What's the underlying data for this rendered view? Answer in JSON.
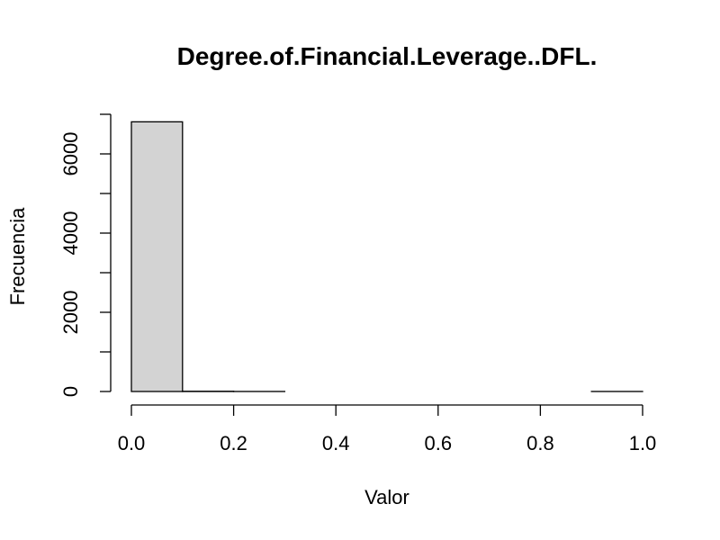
{
  "chart_data": {
    "type": "bar",
    "title": "Degree.of.Financial.Leverage..DFL.",
    "xlabel": "Valor",
    "ylabel": "Frecuencia",
    "bins": [
      {
        "x0": 0.0,
        "x1": 0.1,
        "count": 6810
      },
      {
        "x0": 0.1,
        "x1": 0.2,
        "count": 6
      },
      {
        "x0": 0.2,
        "x1": 0.3,
        "count": 1
      },
      {
        "x0": 0.3,
        "x1": 0.4,
        "count": 0
      },
      {
        "x0": 0.4,
        "x1": 0.5,
        "count": 0
      },
      {
        "x0": 0.5,
        "x1": 0.6,
        "count": 0
      },
      {
        "x0": 0.6,
        "x1": 0.7,
        "count": 0
      },
      {
        "x0": 0.7,
        "x1": 0.8,
        "count": 0
      },
      {
        "x0": 0.8,
        "x1": 0.9,
        "count": 0
      },
      {
        "x0": 0.9,
        "x1": 1.0,
        "count": 1
      }
    ],
    "xlim": [
      0.0,
      1.0
    ],
    "ylim": [
      0,
      7000
    ],
    "x_ticks": [
      0.0,
      0.2,
      0.4,
      0.6,
      0.8,
      1.0
    ],
    "x_tick_labels": [
      "0.0",
      "0.2",
      "0.4",
      "0.6",
      "0.8",
      "1.0"
    ],
    "y_ticks": [
      0,
      1000,
      2000,
      3000,
      4000,
      5000,
      6000,
      7000
    ],
    "y_tick_labels": [
      "0",
      "2000",
      "4000",
      "6000"
    ],
    "y_labeled_ticks": [
      0,
      2000,
      4000,
      6000
    ],
    "bar_color": "#d3d3d3",
    "grid": false,
    "legend": "none"
  }
}
